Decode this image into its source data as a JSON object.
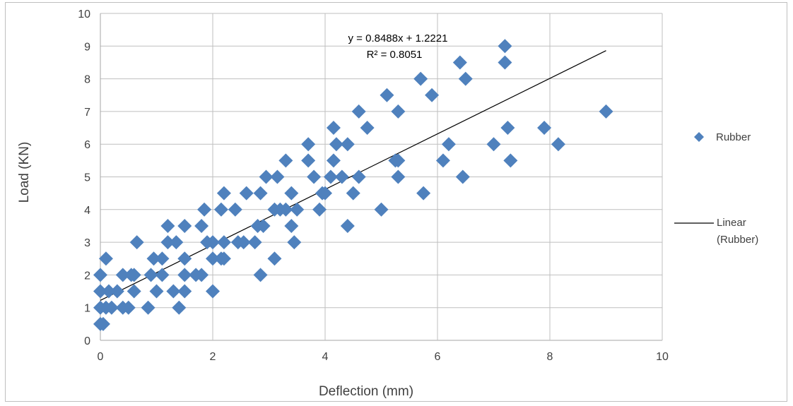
{
  "chart_data": {
    "type": "scatter",
    "title": "",
    "xlabel": "Deflection (mm)",
    "ylabel": "Load (KN)",
    "xlim": [
      0,
      10
    ],
    "ylim": [
      0,
      10
    ],
    "xticks": [
      "0",
      "2",
      "4",
      "6",
      "8",
      "10"
    ],
    "yticks": [
      "0",
      "1",
      "2",
      "3",
      "4",
      "5",
      "6",
      "7",
      "8",
      "9",
      "10"
    ],
    "grid": true,
    "legend_position": "right",
    "series": [
      {
        "name": "Rubber",
        "color": "#4f81bd",
        "marker": "diamond",
        "points": [
          [
            0.0,
            0.5
          ],
          [
            0.05,
            0.5
          ],
          [
            0.0,
            1.0
          ],
          [
            0.1,
            1.0
          ],
          [
            0.2,
            1.0
          ],
          [
            0.0,
            1.5
          ],
          [
            0.15,
            1.5
          ],
          [
            0.3,
            1.5
          ],
          [
            0.0,
            2.0
          ],
          [
            0.1,
            2.5
          ],
          [
            0.4,
            1.0
          ],
          [
            0.5,
            1.0
          ],
          [
            0.4,
            2.0
          ],
          [
            0.55,
            2.0
          ],
          [
            0.6,
            1.5
          ],
          [
            0.6,
            2.0
          ],
          [
            0.65,
            3.0
          ],
          [
            0.85,
            1.0
          ],
          [
            0.9,
            2.0
          ],
          [
            0.95,
            2.5
          ],
          [
            1.0,
            1.5
          ],
          [
            1.1,
            2.0
          ],
          [
            1.1,
            2.5
          ],
          [
            1.2,
            3.0
          ],
          [
            1.2,
            3.5
          ],
          [
            1.3,
            1.5
          ],
          [
            1.35,
            3.0
          ],
          [
            1.4,
            1.0
          ],
          [
            1.5,
            1.5
          ],
          [
            1.5,
            2.0
          ],
          [
            1.5,
            2.5
          ],
          [
            1.5,
            3.5
          ],
          [
            1.7,
            2.0
          ],
          [
            1.8,
            2.0
          ],
          [
            1.8,
            3.5
          ],
          [
            1.85,
            4.0
          ],
          [
            1.9,
            3.0
          ],
          [
            2.0,
            1.5
          ],
          [
            2.0,
            2.5
          ],
          [
            2.0,
            3.0
          ],
          [
            2.15,
            2.5
          ],
          [
            2.15,
            4.0
          ],
          [
            2.2,
            3.0
          ],
          [
            2.2,
            4.5
          ],
          [
            2.2,
            2.5
          ],
          [
            2.4,
            4.0
          ],
          [
            2.45,
            3.0
          ],
          [
            2.55,
            3.0
          ],
          [
            2.6,
            4.5
          ],
          [
            2.75,
            3.0
          ],
          [
            2.8,
            3.5
          ],
          [
            2.85,
            2.0
          ],
          [
            2.85,
            4.5
          ],
          [
            2.9,
            3.5
          ],
          [
            2.95,
            5.0
          ],
          [
            3.1,
            4.0
          ],
          [
            3.1,
            2.5
          ],
          [
            3.15,
            5.0
          ],
          [
            3.2,
            4.0
          ],
          [
            3.3,
            4.0
          ],
          [
            3.3,
            5.5
          ],
          [
            3.4,
            3.5
          ],
          [
            3.4,
            4.5
          ],
          [
            3.45,
            3.0
          ],
          [
            3.5,
            4.0
          ],
          [
            3.7,
            6.0
          ],
          [
            3.7,
            5.5
          ],
          [
            3.8,
            5.0
          ],
          [
            3.9,
            4.0
          ],
          [
            3.95,
            4.5
          ],
          [
            4.0,
            4.5
          ],
          [
            4.1,
            5.0
          ],
          [
            4.15,
            5.5
          ],
          [
            4.15,
            6.5
          ],
          [
            4.2,
            6.0
          ],
          [
            4.3,
            5.0
          ],
          [
            4.4,
            3.5
          ],
          [
            4.4,
            6.0
          ],
          [
            4.5,
            4.5
          ],
          [
            4.6,
            5.0
          ],
          [
            4.6,
            7.0
          ],
          [
            4.75,
            6.5
          ],
          [
            5.0,
            4.0
          ],
          [
            5.1,
            7.5
          ],
          [
            5.25,
            5.5
          ],
          [
            5.3,
            5.0
          ],
          [
            5.3,
            5.5
          ],
          [
            5.3,
            7.0
          ],
          [
            5.7,
            8.0
          ],
          [
            5.75,
            4.5
          ],
          [
            5.9,
            7.5
          ],
          [
            6.1,
            5.5
          ],
          [
            6.2,
            6.0
          ],
          [
            6.4,
            8.5
          ],
          [
            6.45,
            5.0
          ],
          [
            6.5,
            8.0
          ],
          [
            7.0,
            6.0
          ],
          [
            7.2,
            8.5
          ],
          [
            7.2,
            9.0
          ],
          [
            7.25,
            6.5
          ],
          [
            7.3,
            5.5
          ],
          [
            7.9,
            6.5
          ],
          [
            8.15,
            6.0
          ],
          [
            9.0,
            7.0
          ]
        ]
      }
    ],
    "trendline": {
      "name": "Linear (Rubber)",
      "color": "#000000",
      "slope": 0.8488,
      "intercept": 1.2221,
      "x_range": [
        0,
        9
      ],
      "equation_label": "y = 0.8488x + 1.2221",
      "r2_label": "R² = 0.8051"
    },
    "legend": [
      {
        "label": "Rubber",
        "marker": "diamond"
      },
      {
        "label_lines": [
          "Linear",
          "(Rubber)"
        ],
        "marker": "line"
      }
    ]
  }
}
